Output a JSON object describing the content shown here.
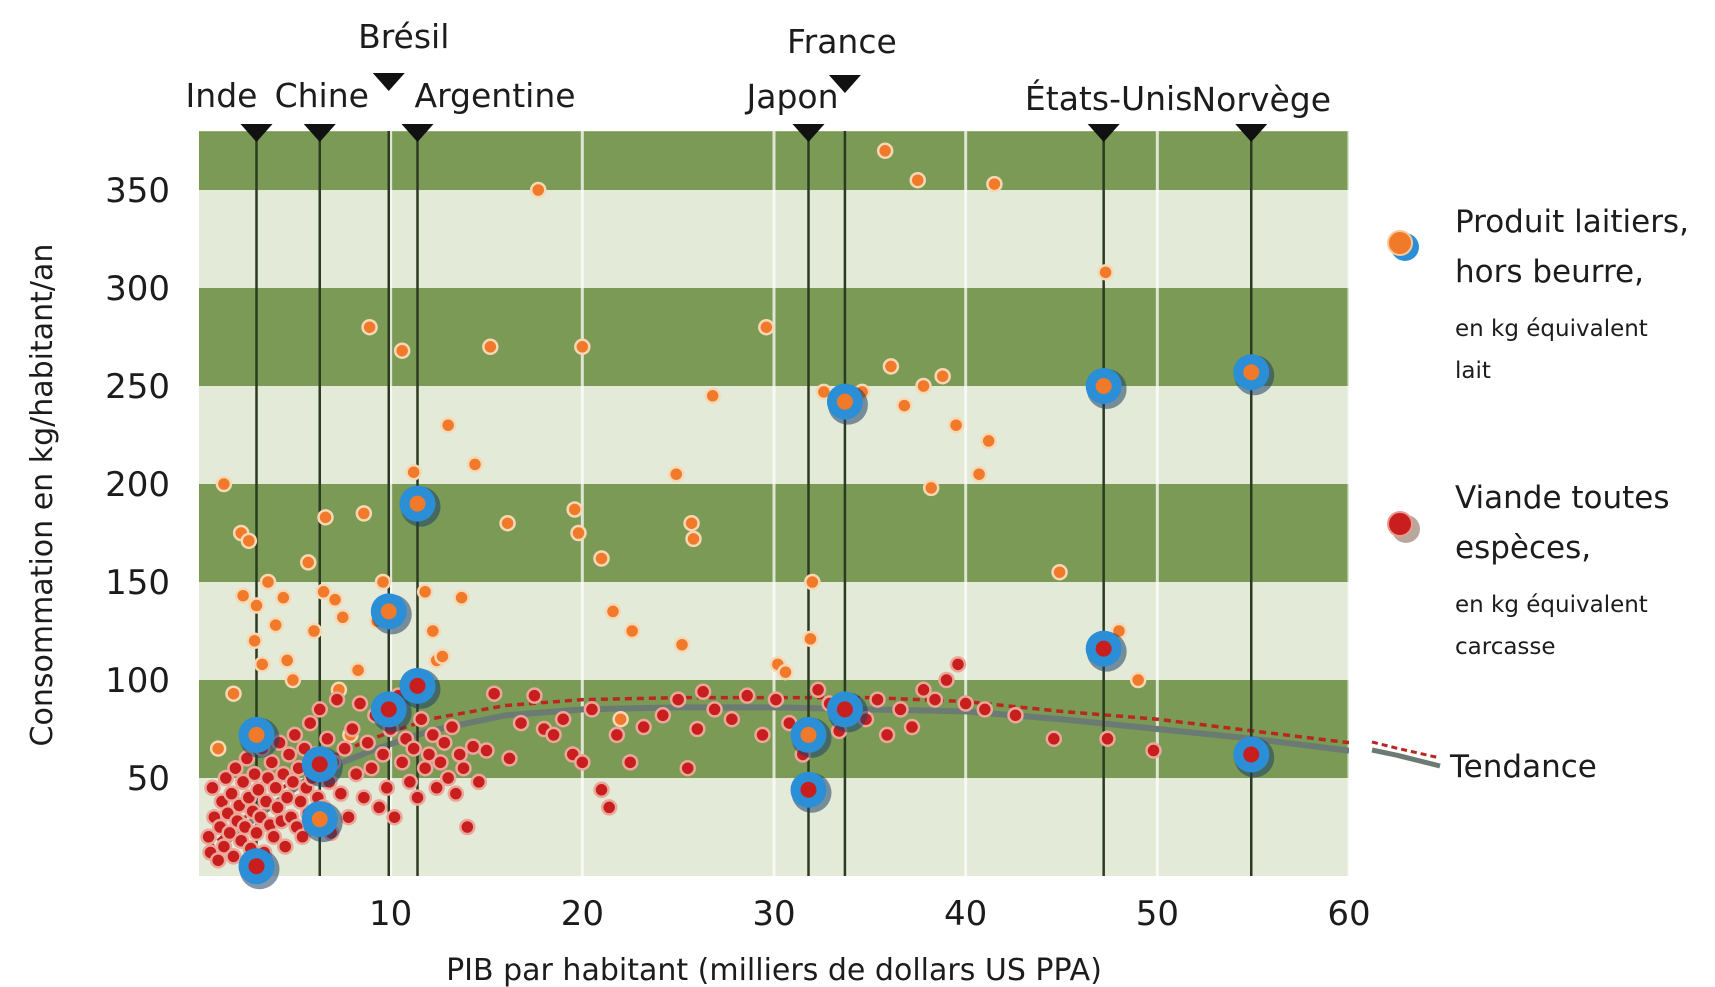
{
  "chart_data": {
    "type": "scatter",
    "title": "",
    "xlabel": "PIB par habitant (milliers de dollars US PPA)",
    "ylabel": "Consommation en kg/habitant/an",
    "xlim": [
      0,
      60
    ],
    "ylim": [
      0,
      380
    ],
    "xticks": [
      10,
      20,
      30,
      40,
      50,
      60
    ],
    "yticks": [
      50,
      100,
      150,
      200,
      250,
      300,
      350
    ],
    "background_bands": {
      "colors": [
        "#7a9a55",
        "#e3ead8"
      ],
      "step": 50
    },
    "colors": {
      "dairy": "#f07a2a",
      "meat": "#c81e1e",
      "highlight": "#2a8fd6",
      "stem": "#2c3a22",
      "trend_line": "#6c7a74",
      "trend_dashed": "#b8281f"
    },
    "countries": [
      {
        "name": "Inde",
        "x": 3.0,
        "dairy": 72,
        "meat": 5
      },
      {
        "name": "Chine",
        "x": 6.3,
        "dairy": 29,
        "meat": 57
      },
      {
        "name": "Brésil",
        "x": 9.9,
        "dairy": 135,
        "meat": 85
      },
      {
        "name": "Argentine",
        "x": 11.4,
        "dairy": 190,
        "meat": 97
      },
      {
        "name": "Japon",
        "x": 31.8,
        "dairy": 72,
        "meat": 44
      },
      {
        "name": "France",
        "x": 33.7,
        "dairy": 242,
        "meat": 85
      },
      {
        "name": "États-Unis",
        "x": 47.2,
        "dairy": 250,
        "meat": 116
      },
      {
        "name": "Norvège",
        "x": 54.9,
        "dairy": 257,
        "meat": 62
      }
    ],
    "series": [
      {
        "name": "Produit laitiers, hors beurre, en kg équivalent lait",
        "color": "#f07a2a",
        "points": [
          [
            1.0,
            65
          ],
          [
            1.3,
            200
          ],
          [
            1.8,
            93
          ],
          [
            2.2,
            175
          ],
          [
            2.3,
            143
          ],
          [
            2.6,
            171
          ],
          [
            2.9,
            120
          ],
          [
            3.0,
            138
          ],
          [
            3.3,
            108
          ],
          [
            3.6,
            150
          ],
          [
            4.0,
            128
          ],
          [
            4.4,
            142
          ],
          [
            4.6,
            110
          ],
          [
            4.9,
            100
          ],
          [
            5.7,
            160
          ],
          [
            6.0,
            125
          ],
          [
            6.5,
            145
          ],
          [
            6.6,
            183
          ],
          [
            7.1,
            141
          ],
          [
            7.3,
            95
          ],
          [
            7.5,
            132
          ],
          [
            7.9,
            72
          ],
          [
            8.3,
            105
          ],
          [
            8.6,
            185
          ],
          [
            8.9,
            280
          ],
          [
            9.3,
            130
          ],
          [
            9.6,
            150
          ],
          [
            10.6,
            268
          ],
          [
            11.2,
            206
          ],
          [
            11.8,
            145
          ],
          [
            12.2,
            125
          ],
          [
            12.4,
            110
          ],
          [
            12.7,
            112
          ],
          [
            13.0,
            230
          ],
          [
            13.7,
            142
          ],
          [
            14.4,
            210
          ],
          [
            15.2,
            270
          ],
          [
            16.1,
            180
          ],
          [
            17.7,
            350
          ],
          [
            19.6,
            187
          ],
          [
            19.8,
            175
          ],
          [
            20.0,
            270
          ],
          [
            21.0,
            162
          ],
          [
            21.6,
            135
          ],
          [
            22.0,
            80
          ],
          [
            22.6,
            125
          ],
          [
            24.9,
            205
          ],
          [
            25.2,
            118
          ],
          [
            25.7,
            180
          ],
          [
            25.8,
            172
          ],
          [
            26.8,
            245
          ],
          [
            29.6,
            280
          ],
          [
            30.2,
            108
          ],
          [
            30.6,
            104
          ],
          [
            31.9,
            121
          ],
          [
            32.0,
            150
          ],
          [
            32.6,
            247
          ],
          [
            34.6,
            247
          ],
          [
            35.8,
            370
          ],
          [
            36.1,
            260
          ],
          [
            36.8,
            240
          ],
          [
            37.5,
            355
          ],
          [
            37.8,
            250
          ],
          [
            38.2,
            198
          ],
          [
            38.8,
            255
          ],
          [
            39.5,
            230
          ],
          [
            40.7,
            205
          ],
          [
            41.2,
            222
          ],
          [
            41.5,
            353
          ],
          [
            44.9,
            155
          ],
          [
            47.3,
            308
          ],
          [
            48.0,
            125
          ],
          [
            49.0,
            100
          ]
        ]
      },
      {
        "name": "Viande toutes espèces, en kg équivalent carcasse",
        "color": "#c81e1e",
        "points": [
          [
            0.5,
            20
          ],
          [
            0.6,
            12
          ],
          [
            0.7,
            45
          ],
          [
            0.8,
            30
          ],
          [
            1.0,
            8
          ],
          [
            1.1,
            25
          ],
          [
            1.2,
            38
          ],
          [
            1.3,
            15
          ],
          [
            1.4,
            50
          ],
          [
            1.5,
            32
          ],
          [
            1.6,
            22
          ],
          [
            1.7,
            42
          ],
          [
            1.8,
            10
          ],
          [
            1.9,
            55
          ],
          [
            2.0,
            28
          ],
          [
            2.1,
            36
          ],
          [
            2.2,
            18
          ],
          [
            2.3,
            48
          ],
          [
            2.4,
            25
          ],
          [
            2.5,
            60
          ],
          [
            2.6,
            40
          ],
          [
            2.7,
            14
          ],
          [
            2.8,
            33
          ],
          [
            2.9,
            52
          ],
          [
            3.0,
            22
          ],
          [
            3.1,
            44
          ],
          [
            3.2,
            30
          ],
          [
            3.3,
            65
          ],
          [
            3.4,
            12
          ],
          [
            3.5,
            38
          ],
          [
            3.6,
            50
          ],
          [
            3.7,
            26
          ],
          [
            3.8,
            58
          ],
          [
            3.9,
            20
          ],
          [
            4.0,
            45
          ],
          [
            4.1,
            35
          ],
          [
            4.2,
            68
          ],
          [
            4.3,
            28
          ],
          [
            4.4,
            52
          ],
          [
            4.5,
            15
          ],
          [
            4.6,
            40
          ],
          [
            4.7,
            62
          ],
          [
            4.8,
            30
          ],
          [
            4.9,
            48
          ],
          [
            5.0,
            72
          ],
          [
            5.1,
            25
          ],
          [
            5.2,
            55
          ],
          [
            5.3,
            38
          ],
          [
            5.4,
            20
          ],
          [
            5.5,
            65
          ],
          [
            5.6,
            45
          ],
          [
            5.7,
            32
          ],
          [
            5.8,
            78
          ],
          [
            5.9,
            50
          ],
          [
            6.0,
            28
          ],
          [
            6.1,
            62
          ],
          [
            6.2,
            40
          ],
          [
            6.3,
            85
          ],
          [
            6.5,
            35
          ],
          [
            6.7,
            70
          ],
          [
            6.8,
            48
          ],
          [
            6.9,
            22
          ],
          [
            7.0,
            58
          ],
          [
            7.2,
            90
          ],
          [
            7.4,
            42
          ],
          [
            7.6,
            65
          ],
          [
            7.8,
            30
          ],
          [
            8.0,
            75
          ],
          [
            8.2,
            52
          ],
          [
            8.4,
            88
          ],
          [
            8.6,
            40
          ],
          [
            8.8,
            68
          ],
          [
            9.0,
            55
          ],
          [
            9.2,
            82
          ],
          [
            9.4,
            35
          ],
          [
            9.6,
            62
          ],
          [
            9.8,
            45
          ],
          [
            10.0,
            75
          ],
          [
            10.2,
            30
          ],
          [
            10.4,
            92
          ],
          [
            10.6,
            58
          ],
          [
            10.8,
            70
          ],
          [
            11.0,
            48
          ],
          [
            11.2,
            65
          ],
          [
            11.4,
            40
          ],
          [
            11.6,
            80
          ],
          [
            11.8,
            55
          ],
          [
            12.0,
            62
          ],
          [
            12.2,
            72
          ],
          [
            12.4,
            45
          ],
          [
            12.6,
            58
          ],
          [
            12.8,
            68
          ],
          [
            13.0,
            50
          ],
          [
            13.2,
            76
          ],
          [
            13.4,
            42
          ],
          [
            13.6,
            62
          ],
          [
            13.8,
            55
          ],
          [
            14.0,
            25
          ],
          [
            14.3,
            66
          ],
          [
            14.6,
            48
          ],
          [
            15.0,
            64
          ],
          [
            15.4,
            93
          ],
          [
            16.2,
            60
          ],
          [
            16.8,
            78
          ],
          [
            17.5,
            92
          ],
          [
            18.0,
            75
          ],
          [
            18.5,
            72
          ],
          [
            19.0,
            80
          ],
          [
            19.5,
            62
          ],
          [
            20.0,
            58
          ],
          [
            20.5,
            85
          ],
          [
            21.0,
            44
          ],
          [
            21.4,
            35
          ],
          [
            21.8,
            72
          ],
          [
            22.5,
            58
          ],
          [
            23.2,
            76
          ],
          [
            24.2,
            82
          ],
          [
            25.0,
            90
          ],
          [
            25.5,
            55
          ],
          [
            26.0,
            75
          ],
          [
            26.3,
            94
          ],
          [
            26.9,
            85
          ],
          [
            27.8,
            80
          ],
          [
            28.6,
            92
          ],
          [
            29.4,
            72
          ],
          [
            30.1,
            90
          ],
          [
            30.8,
            78
          ],
          [
            31.5,
            62
          ],
          [
            32.3,
            95
          ],
          [
            32.9,
            88
          ],
          [
            33.4,
            74
          ],
          [
            34.8,
            80
          ],
          [
            35.4,
            90
          ],
          [
            35.9,
            72
          ],
          [
            36.6,
            85
          ],
          [
            37.2,
            76
          ],
          [
            37.8,
            95
          ],
          [
            38.4,
            90
          ],
          [
            39.0,
            100
          ],
          [
            39.6,
            108
          ],
          [
            40.0,
            88
          ],
          [
            41.0,
            85
          ],
          [
            42.6,
            82
          ],
          [
            44.6,
            70
          ],
          [
            47.4,
            70
          ],
          [
            49.8,
            64
          ]
        ]
      }
    ],
    "trend": {
      "label": "Tendance",
      "meat_solid": [
        [
          0.5,
          10
        ],
        [
          3,
          30
        ],
        [
          6,
          52
        ],
        [
          9,
          64
        ],
        [
          12,
          74
        ],
        [
          16,
          82
        ],
        [
          20,
          85
        ],
        [
          25,
          86
        ],
        [
          30,
          86
        ],
        [
          35,
          85
        ],
        [
          40,
          84
        ],
        [
          45,
          80
        ],
        [
          50,
          75
        ],
        [
          55,
          70
        ],
        [
          60,
          64
        ]
      ],
      "dairy_dashed": [
        [
          0.5,
          14
        ],
        [
          3,
          35
        ],
        [
          6,
          57
        ],
        [
          9,
          70
        ],
        [
          12,
          80
        ],
        [
          16,
          87
        ],
        [
          20,
          90
        ],
        [
          25,
          91
        ],
        [
          30,
          91
        ],
        [
          35,
          91
        ],
        [
          40,
          89
        ],
        [
          45,
          84
        ],
        [
          50,
          80
        ],
        [
          55,
          74
        ],
        [
          60,
          68
        ]
      ]
    },
    "legend": {
      "placement": "right",
      "dairy": {
        "line1": "Produit laitiers,",
        "line2": "hors beurre,",
        "line3": "en kg équivalent",
        "line4": "lait"
      },
      "meat": {
        "line1": "Viande toutes",
        "line2": "espèces,",
        "line3": "en kg équivalent",
        "line4": "carcasse"
      },
      "trend": "Tendance"
    }
  }
}
